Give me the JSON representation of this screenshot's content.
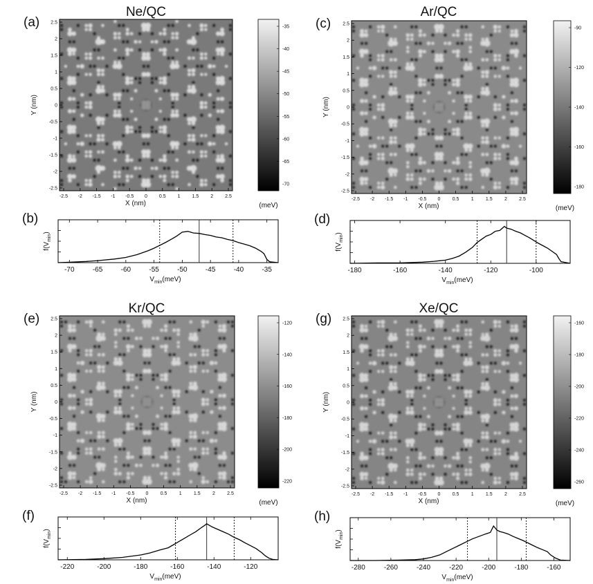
{
  "panels": [
    {
      "letter": "(a)",
      "title": "Ne/QC",
      "xlabel": "X (nm)",
      "ylabel": "Y (nm)",
      "xticks": [
        "-2.5",
        "-2",
        "-1.5",
        "-1",
        "-0.5",
        "0",
        "0.5",
        "1",
        "1.5",
        "2",
        "2.5"
      ],
      "yticks": [
        "2.5",
        "2",
        "1.5",
        "1",
        "0.5",
        "0",
        "-0.5",
        "-1",
        "-1.5",
        "-2",
        "-2.5"
      ],
      "colorbar": {
        "ticks": [
          "-35",
          "-40",
          "-45",
          "-50",
          "-55",
          "-60",
          "-65",
          "-70"
        ],
        "unit": "(meV)"
      },
      "pattern_shade": {
        "background": "#7a7a7a",
        "bright": "#e2e2e2",
        "dark": "#151515"
      }
    },
    {
      "letter": "(c)",
      "title": "Ar/QC",
      "xlabel": "X (nm)",
      "ylabel": "Y (nm)",
      "xticks": [
        "-2.5",
        "-2",
        "-1.5",
        "-1",
        "-0.5",
        "0",
        "0.5",
        "1",
        "1.5",
        "2",
        "2.5"
      ],
      "yticks": [
        "2.5",
        "2",
        "1.5",
        "1",
        "0.5",
        "0",
        "-0.5",
        "-1",
        "-1.5",
        "-2",
        "-2.5"
      ],
      "colorbar": {
        "ticks": [
          "-90",
          "-120",
          "-140",
          "-160",
          "-180"
        ],
        "unit": "(meV)"
      },
      "pattern_shade": {
        "background": "#8a8a8a",
        "bright": "#dedede",
        "dark": "#1a1a1a"
      }
    },
    {
      "letter": "(e)",
      "title": "Kr/QC",
      "xlabel": "X (nm)",
      "ylabel": "Y (nm)",
      "xticks": [
        "-2.5",
        "-2",
        "-1.5",
        "-1",
        "-0.5",
        "0",
        "0.5",
        "1",
        "1.5",
        "2",
        "2.5"
      ],
      "yticks": [
        "2.5",
        "2",
        "1.5",
        "1",
        "0.5",
        "0",
        "-0.5",
        "-1",
        "-1.5",
        "-2",
        "-2.5"
      ],
      "colorbar": {
        "ticks": [
          "-120",
          "-140",
          "-160",
          "-180",
          "-200",
          "-220"
        ],
        "unit": "(meV)"
      },
      "pattern_shade": {
        "background": "#8c8c8c",
        "bright": "#dcdcdc",
        "dark": "#1c1c1c"
      }
    },
    {
      "letter": "(g)",
      "title": "Xe/QC",
      "xlabel": "X (nm)",
      "ylabel": "Y (nm)",
      "xticks": [
        "-2.5",
        "-2",
        "-1.5",
        "-1",
        "-0.5",
        "0",
        "0.5",
        "1",
        "1.5",
        "2",
        "2.5"
      ],
      "yticks": [
        "2.5",
        "2",
        "1.5",
        "1",
        "0.5",
        "0",
        "-0.5",
        "-1",
        "-1.5",
        "-2",
        "-2.5"
      ],
      "colorbar": {
        "ticks": [
          "-160",
          "-180",
          "-200",
          "-220",
          "-240",
          "-260"
        ],
        "unit": "(meV)"
      },
      "pattern_shade": {
        "background": "#858585",
        "bright": "#dadada",
        "dark": "#181818"
      }
    }
  ],
  "chart_data": [
    {
      "letter": "(b)",
      "type": "line",
      "xlabel": "V_min(meV)",
      "ylabel": "f(V_min)",
      "xlim": [
        -72,
        -33
      ],
      "xticks": [
        -70,
        -65,
        -60,
        -55,
        -50,
        -45,
        -40,
        -35
      ],
      "solid_line": -47,
      "dotted_lines": [
        -54,
        -41
      ],
      "x": [
        -72,
        -70,
        -67,
        -65,
        -62,
        -60,
        -58,
        -56,
        -55,
        -54,
        -53,
        -52,
        -51,
        -50,
        -49,
        -48,
        -47,
        -46,
        -45,
        -44,
        -43,
        -42,
        -41,
        -40,
        -39,
        -38,
        -37,
        -36,
        -35.5,
        -35,
        -34.5,
        -33
      ],
      "y": [
        0,
        0.01,
        0.03,
        0.05,
        0.09,
        0.13,
        0.2,
        0.3,
        0.36,
        0.43,
        0.5,
        0.58,
        0.66,
        0.76,
        0.78,
        0.74,
        0.73,
        0.7,
        0.68,
        0.64,
        0.62,
        0.58,
        0.55,
        0.5,
        0.46,
        0.42,
        0.36,
        0.28,
        0.22,
        0.08,
        0.02,
        0
      ]
    },
    {
      "letter": "(d)",
      "type": "line",
      "xlabel": "V_min(meV)",
      "ylabel": "f(V_min)",
      "xlim": [
        -182,
        -85
      ],
      "xticks": [
        -180,
        -160,
        -140,
        -120,
        -100
      ],
      "solid_line": -113,
      "dotted_lines": [
        -126,
        -100
      ],
      "x": [
        -182,
        -170,
        -160,
        -150,
        -145,
        -140,
        -137,
        -134,
        -131,
        -128,
        -126,
        -124,
        -122,
        -120,
        -118,
        -116,
        -114,
        -113,
        -111,
        -109,
        -107,
        -105,
        -103,
        -101,
        -99,
        -97,
        -95,
        -93,
        -91,
        -90,
        -89,
        -85
      ],
      "y": [
        0,
        0.01,
        0.01,
        0.03,
        0.05,
        0.08,
        0.12,
        0.18,
        0.28,
        0.4,
        0.52,
        0.6,
        0.68,
        0.72,
        0.8,
        0.82,
        0.92,
        0.88,
        0.85,
        0.8,
        0.76,
        0.7,
        0.64,
        0.57,
        0.5,
        0.44,
        0.38,
        0.3,
        0.22,
        0.12,
        0.04,
        0
      ]
    },
    {
      "letter": "(f)",
      "type": "line",
      "xlabel": "V_min(meV)",
      "ylabel": "f(V_min)",
      "xlim": [
        -225,
        -105
      ],
      "xticks": [
        -220,
        -200,
        -180,
        -160,
        -140,
        -120
      ],
      "solid_line": -144,
      "dotted_lines": [
        -161,
        -129
      ],
      "x": [
        -225,
        -210,
        -200,
        -190,
        -180,
        -175,
        -170,
        -165,
        -162,
        -159,
        -156,
        -153,
        -150,
        -147,
        -145,
        -144,
        -141,
        -138,
        -135,
        -132,
        -129,
        -126,
        -123,
        -120,
        -117,
        -114,
        -112,
        -110,
        -108,
        -105
      ],
      "y": [
        0,
        0.01,
        0.03,
        0.06,
        0.12,
        0.17,
        0.24,
        0.3,
        0.38,
        0.46,
        0.54,
        0.62,
        0.7,
        0.8,
        0.86,
        0.9,
        0.82,
        0.76,
        0.7,
        0.64,
        0.56,
        0.5,
        0.42,
        0.35,
        0.28,
        0.18,
        0.1,
        0.04,
        0.01,
        0
      ]
    },
    {
      "letter": "(h)",
      "type": "line",
      "xlabel": "V_min(meV)",
      "ylabel": "f(V_min)",
      "xlim": [
        -285,
        -150
      ],
      "xticks": [
        -280,
        -260,
        -240,
        -220,
        -200,
        -180,
        -160
      ],
      "solid_line": -195,
      "dotted_lines": [
        -213,
        -177
      ],
      "x": [
        -285,
        -270,
        -255,
        -245,
        -240,
        -235,
        -230,
        -226,
        -222,
        -218,
        -214,
        -210,
        -206,
        -202,
        -199,
        -197,
        -195,
        -193,
        -191,
        -188,
        -185,
        -182,
        -179,
        -176,
        -173,
        -170,
        -167,
        -164,
        -162,
        -159,
        -156,
        -150
      ],
      "y": [
        0,
        0,
        0.01,
        0.02,
        0.04,
        0.08,
        0.14,
        0.22,
        0.3,
        0.38,
        0.46,
        0.54,
        0.6,
        0.66,
        0.7,
        0.86,
        0.76,
        0.72,
        0.7,
        0.66,
        0.6,
        0.55,
        0.5,
        0.44,
        0.38,
        0.32,
        0.27,
        0.22,
        0.14,
        0.06,
        0.01,
        0
      ]
    }
  ]
}
